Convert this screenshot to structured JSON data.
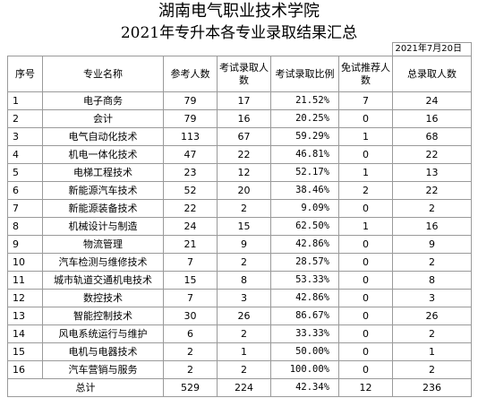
{
  "title_line1": "湖南电气职业技术学院",
  "title_line2": "2021年专升本各专业录取结果汇总",
  "date": "2021年7月20日",
  "headers": {
    "idx": "序号",
    "major": "专业名称",
    "applicants_a": "参考人数",
    "exam_admitted": "考试录取人数",
    "exam_ratio": "考试录取比例",
    "exempt": "免试推荐人数",
    "total": "总录取人数"
  },
  "rows": [
    {
      "idx": "1",
      "major": "电子商务",
      "applicants": "79",
      "exam_admitted": "17",
      "ratio": "21.52%",
      "exempt": "7",
      "total": "24"
    },
    {
      "idx": "2",
      "major": "会计",
      "applicants": "79",
      "exam_admitted": "16",
      "ratio": "20.25%",
      "exempt": "0",
      "total": "16"
    },
    {
      "idx": "3",
      "major": "电气自动化技术",
      "applicants": "113",
      "exam_admitted": "67",
      "ratio": "59.29%",
      "exempt": "1",
      "total": "68"
    },
    {
      "idx": "4",
      "major": "机电一体化技术",
      "applicants": "47",
      "exam_admitted": "22",
      "ratio": "46.81%",
      "exempt": "0",
      "total": "22"
    },
    {
      "idx": "5",
      "major": "电梯工程技术",
      "applicants": "23",
      "exam_admitted": "12",
      "ratio": "52.17%",
      "exempt": "1",
      "total": "13"
    },
    {
      "idx": "6",
      "major": "新能源汽车技术",
      "applicants": "52",
      "exam_admitted": "20",
      "ratio": "38.46%",
      "exempt": "2",
      "total": "22"
    },
    {
      "idx": "7",
      "major": "新能源装备技术",
      "applicants": "22",
      "exam_admitted": "2",
      "ratio": "9.09%",
      "exempt": "0",
      "total": "2"
    },
    {
      "idx": "8",
      "major": "机械设计与制造",
      "applicants": "24",
      "exam_admitted": "15",
      "ratio": "62.50%",
      "exempt": "1",
      "total": "16"
    },
    {
      "idx": "9",
      "major": "物流管理",
      "applicants": "21",
      "exam_admitted": "9",
      "ratio": "42.86%",
      "exempt": "0",
      "total": "9"
    },
    {
      "idx": "10",
      "major": "汽车检测与维修技术",
      "applicants": "7",
      "exam_admitted": "2",
      "ratio": "28.57%",
      "exempt": "0",
      "total": "2"
    },
    {
      "idx": "11",
      "major": "城市轨道交通机电技术",
      "applicants": "15",
      "exam_admitted": "8",
      "ratio": "53.33%",
      "exempt": "0",
      "total": "8"
    },
    {
      "idx": "12",
      "major": "数控技术",
      "applicants": "7",
      "exam_admitted": "3",
      "ratio": "42.86%",
      "exempt": "0",
      "total": "3"
    },
    {
      "idx": "13",
      "major": "智能控制技术",
      "applicants": "30",
      "exam_admitted": "26",
      "ratio": "86.67%",
      "exempt": "0",
      "total": "26"
    },
    {
      "idx": "14",
      "major": "风电系统运行与维护",
      "applicants": "6",
      "exam_admitted": "2",
      "ratio": "33.33%",
      "exempt": "0",
      "total": "2"
    },
    {
      "idx": "15",
      "major": "电机与电器技术",
      "applicants": "2",
      "exam_admitted": "1",
      "ratio": "50.00%",
      "exempt": "0",
      "total": "1"
    },
    {
      "idx": "16",
      "major": "汽车营销与服务",
      "applicants": "2",
      "exam_admitted": "2",
      "ratio": "100.00%",
      "exempt": "0",
      "total": "2"
    }
  ],
  "total_row": {
    "label": "总计",
    "applicants": "529",
    "exam_admitted": "224",
    "ratio": "42.34%",
    "exempt": "12",
    "total": "236"
  }
}
